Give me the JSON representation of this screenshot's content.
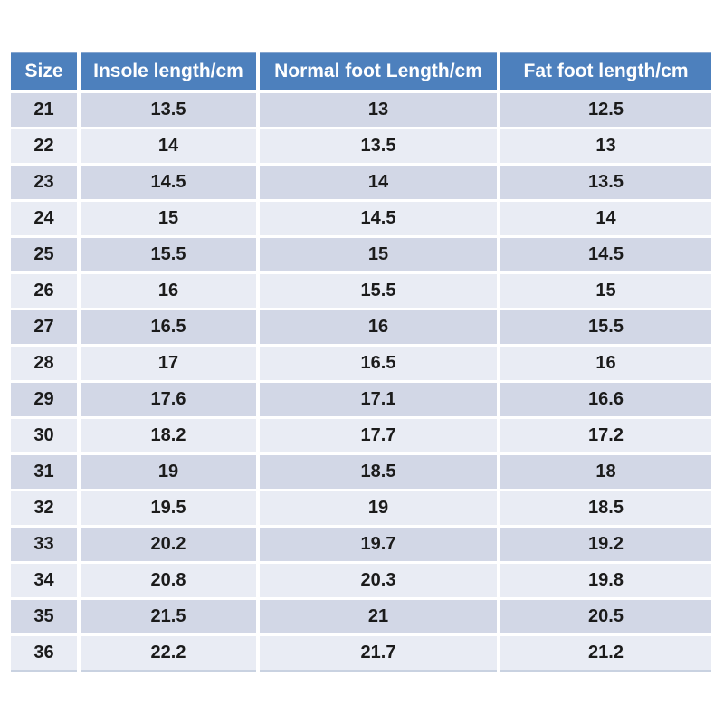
{
  "chart_data": {
    "type": "table",
    "columns": [
      "Size",
      "Insole length/cm",
      "Normal foot Length/cm",
      "Fat foot length/cm"
    ],
    "rows": [
      [
        21,
        13.5,
        13,
        12.5
      ],
      [
        22,
        14,
        13.5,
        13
      ],
      [
        23,
        14.5,
        14,
        13.5
      ],
      [
        24,
        15,
        14.5,
        14
      ],
      [
        25,
        15.5,
        15,
        14.5
      ],
      [
        26,
        16,
        15.5,
        15
      ],
      [
        27,
        16.5,
        16,
        15.5
      ],
      [
        28,
        17,
        16.5,
        16
      ],
      [
        29,
        17.6,
        17.1,
        16.6
      ],
      [
        30,
        18.2,
        17.7,
        17.2
      ],
      [
        31,
        19,
        18.5,
        18
      ],
      [
        32,
        19.5,
        19,
        18.5
      ],
      [
        33,
        20.2,
        19.7,
        19.2
      ],
      [
        34,
        20.8,
        20.3,
        19.8
      ],
      [
        35,
        21.5,
        21,
        20.5
      ],
      [
        36,
        22.2,
        21.7,
        21.2
      ]
    ]
  },
  "colors": {
    "header_bg": "#4D80BD",
    "header_text": "#FFFFFF",
    "header_highlight": "#86A6D0",
    "row_band_dark": "#D2D7E6",
    "row_band_light": "#E9ECF4",
    "body_text": "#1B1B1B",
    "separator": "#FFFFFF",
    "table_bottom_border": "#C9D2E1"
  }
}
